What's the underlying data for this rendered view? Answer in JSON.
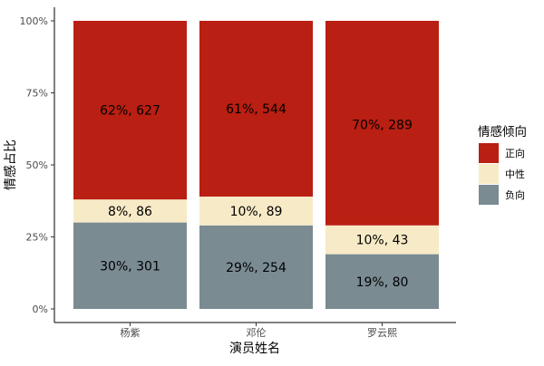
{
  "chart_data": {
    "type": "bar",
    "stacked": true,
    "percent": true,
    "categories": [
      "杨紫",
      "邓伦",
      "罗云熙"
    ],
    "xlabel": "演员姓名",
    "ylabel": "情感占比",
    "ylim": [
      0,
      100
    ],
    "yticks": [
      "0%",
      "25%",
      "50%",
      "75%",
      "100%"
    ],
    "legend": {
      "title": "情感倾向",
      "position": "right"
    },
    "series": [
      {
        "name": "负向",
        "color": "#7a8b92",
        "values": [
          30,
          29,
          19
        ],
        "labels": [
          "30%, 301",
          "29%, 254",
          "19%, 80"
        ]
      },
      {
        "name": "中性",
        "color": "#f7eac6",
        "values": [
          8,
          10,
          10
        ],
        "labels": [
          "8%, 86",
          "10%, 89",
          "10%, 43"
        ]
      },
      {
        "name": "正向",
        "color": "#b91f12",
        "values": [
          62,
          61,
          70
        ],
        "labels": [
          "62%, 627",
          "61%, 544",
          "70%, 289"
        ]
      }
    ]
  }
}
